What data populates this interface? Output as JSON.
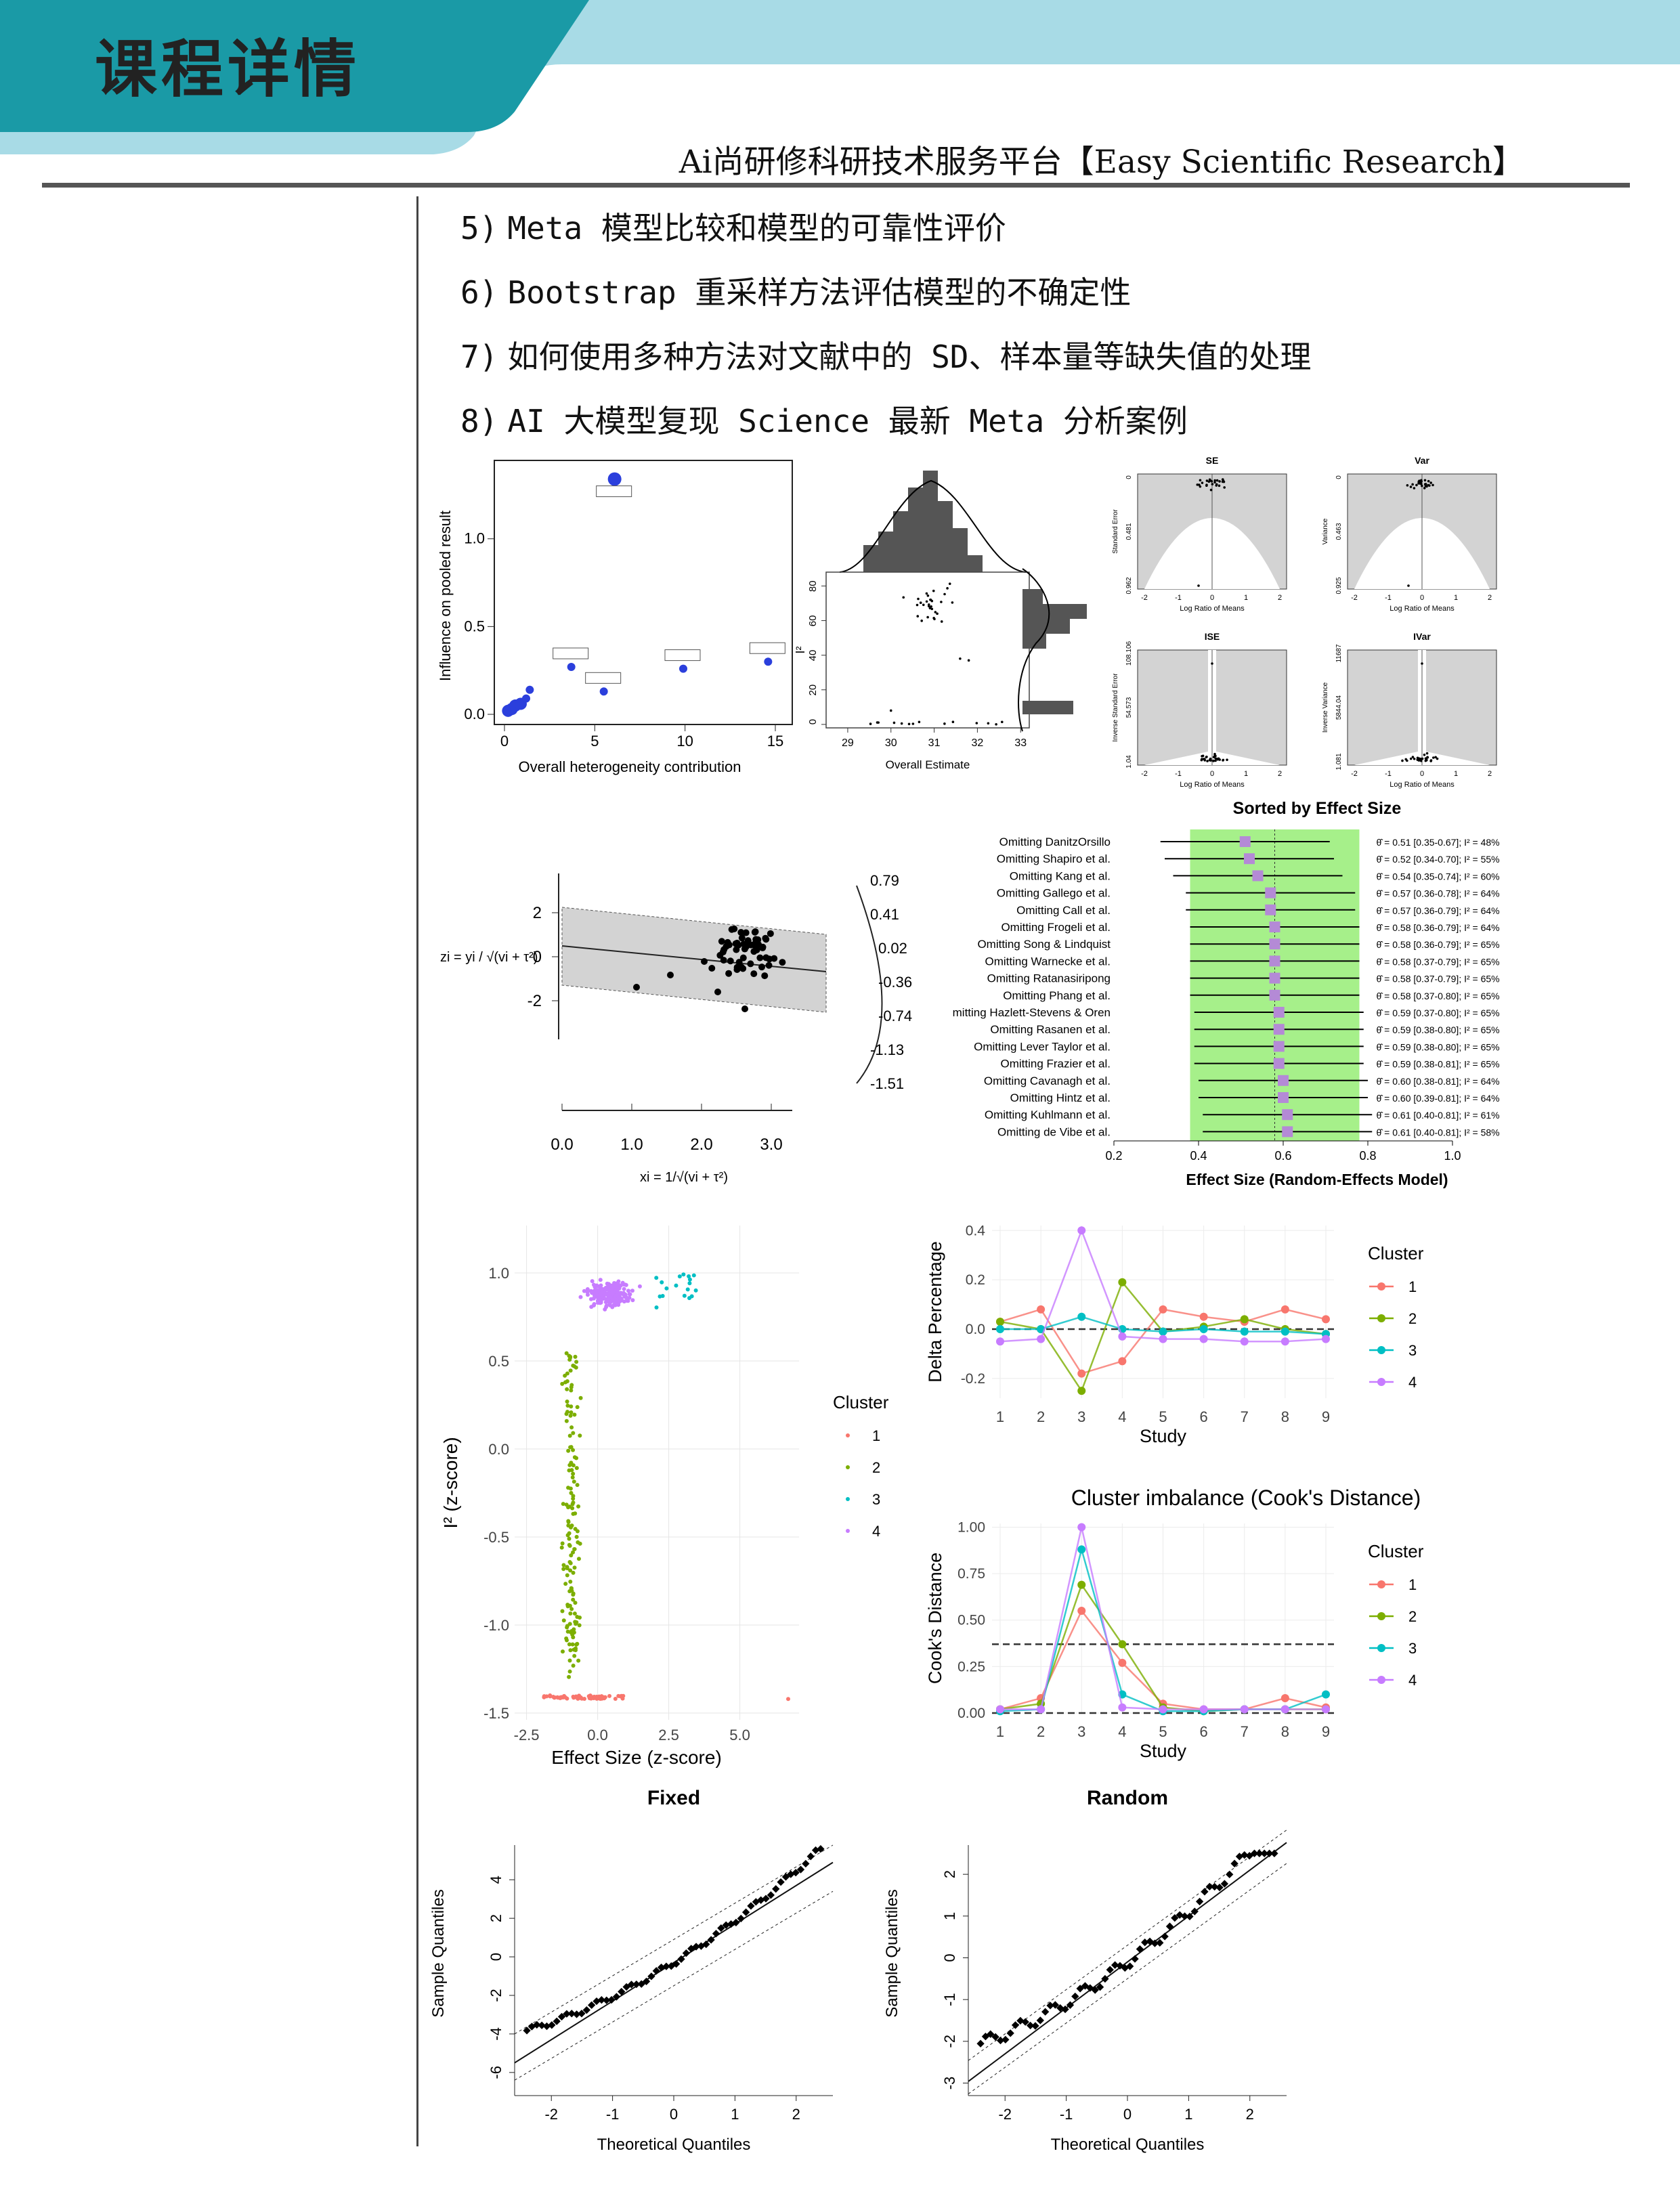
{
  "header": {
    "title": "课程详情",
    "platform": "Ai尚研修科研技术服务平台【Easy Scientific Research】",
    "colors": {
      "teal": "#1a9aa6",
      "light_blue": "#a8dbe6"
    }
  },
  "items": [
    {
      "num": "5)",
      "text": "Meta 模型比较和模型的可靠性评价"
    },
    {
      "num": "6)",
      "text": "Bootstrap 重采样方法评估模型的不确定性"
    },
    {
      "num": "7)",
      "text": "如何使用多种方法对文献中的 SD、样本量等缺失值的处理"
    },
    {
      "num": "8)",
      "text": "AI 大模型复现 Science 最新 Meta 分析案例"
    }
  ],
  "figures": {
    "influence": {
      "chart_data": {
        "type": "scatter",
        "xlabel": "Overall heterogeneity contribution",
        "ylabel": "Influence on pooled result",
        "x_ticks": [
          "0",
          "5",
          "10",
          "15"
        ],
        "y_ticks": [
          "0.0",
          "0.5",
          "1.0"
        ],
        "xlim": [
          0,
          15
        ],
        "ylim": [
          0,
          1.35
        ],
        "points": [
          {
            "x": 0.2,
            "y": 0.02
          },
          {
            "x": 0.4,
            "y": 0.03
          },
          {
            "x": 0.6,
            "y": 0.05
          },
          {
            "x": 0.9,
            "y": 0.06
          },
          {
            "x": 1.2,
            "y": 0.09
          },
          {
            "x": 1.4,
            "y": 0.14
          },
          {
            "x": 3.7,
            "y": 0.27
          },
          {
            "x": 5.5,
            "y": 0.13
          },
          {
            "x": 9.9,
            "y": 0.26
          },
          {
            "x": 14.6,
            "y": 0.3
          },
          {
            "x": 6.1,
            "y": 1.34
          }
        ]
      }
    },
    "marginal": {
      "chart_data": {
        "type": "scatter",
        "xlabel": "Overall Estimate",
        "ylabel": "I²",
        "x_ticks": [
          "29",
          "30",
          "31",
          "32",
          "33"
        ],
        "y_ticks": [
          "0",
          "20",
          "40",
          "60",
          "80"
        ],
        "xlim": [
          28.5,
          33.2
        ],
        "ylim": [
          -2,
          88
        ]
      }
    },
    "funnels": {
      "panels": [
        {
          "title": "SE",
          "ylabel": "Standard Error",
          "xlabel": "Log Ratio of Means",
          "y_ticks": [
            "0",
            "0.481",
            "0.962"
          ]
        },
        {
          "title": "Var",
          "ylabel": "Variance",
          "xlabel": "Log Ratio of Means",
          "y_ticks": [
            "0",
            "0.463",
            "0.925"
          ]
        },
        {
          "title": "ISE",
          "ylabel": "Inverse Standard Error",
          "xlabel": "Log Ratio of Means",
          "y_ticks": [
            "108.106",
            "54.573",
            "1.04"
          ]
        },
        {
          "title": "IVar",
          "ylabel": "Inverse Variance",
          "xlabel": "Log Ratio of Means",
          "y_ticks": [
            "11687",
            "5844.04",
            "1.081"
          ]
        }
      ],
      "x_ticks": [
        "-2",
        "-1",
        "0",
        "1",
        "2"
      ]
    },
    "galbraith": {
      "chart_data": {
        "type": "scatter",
        "ylabel": "zi = yi / √(vi + τ²)",
        "xlabel": "xi = 1/√(vi + τ²)",
        "x_ticks": [
          "0.0",
          "1.0",
          "2.0",
          "3.0"
        ],
        "y_ticks": [
          "2",
          "0",
          "-2"
        ],
        "arc_ticks": [
          "0.79",
          "0.41",
          "0.02",
          "-0.36",
          "-0.74",
          "-1.13",
          "-1.51"
        ]
      }
    },
    "forest": {
      "chart_data": {
        "type": "forest",
        "title": "Sorted by Effect Size",
        "xlabel": "Effect Size (Random-Effects Model)",
        "x_ticks": [
          "0.2",
          "0.4",
          "0.6",
          "0.8",
          "1.0"
        ],
        "xlim": [
          0.2,
          1.0
        ],
        "rows": [
          {
            "label": "Omitting DanitzOrsillo",
            "est": 0.51,
            "ci": "θ̂ = 0.51 [0.35-0.67]; I² = 48%"
          },
          {
            "label": "Omitting Shapiro et al.",
            "est": 0.52,
            "ci": "θ̂ = 0.52 [0.34-0.70]; I² = 55%"
          },
          {
            "label": "Omitting Kang et al.",
            "est": 0.54,
            "ci": "θ̂ = 0.54 [0.35-0.74]; I² = 60%"
          },
          {
            "label": "Omitting Gallego et al.",
            "est": 0.57,
            "ci": "θ̂ = 0.57 [0.36-0.78]; I² = 64%"
          },
          {
            "label": "Omitting Call et al.",
            "est": 0.57,
            "ci": "θ̂ = 0.57 [0.36-0.79]; I² = 64%"
          },
          {
            "label": "Omitting Frogeli et al.",
            "est": 0.58,
            "ci": "θ̂ = 0.58 [0.36-0.79]; I² = 64%"
          },
          {
            "label": "Omitting Song & Lindquist",
            "est": 0.58,
            "ci": "θ̂ = 0.58 [0.36-0.79]; I² = 65%"
          },
          {
            "label": "Omitting Warnecke et al.",
            "est": 0.58,
            "ci": "θ̂ = 0.58 [0.37-0.79]; I² = 65%"
          },
          {
            "label": "Omitting Ratanasiripong",
            "est": 0.58,
            "ci": "θ̂ = 0.58 [0.37-0.79]; I² = 65%"
          },
          {
            "label": "Omitting Phang et al.",
            "est": 0.58,
            "ci": "θ̂ = 0.58 [0.37-0.80]; I² = 65%"
          },
          {
            "label": "mitting Hazlett-Stevens & Oren",
            "est": 0.59,
            "ci": "θ̂ = 0.59 [0.37-0.80]; I² = 65%"
          },
          {
            "label": "Omitting Rasanen et al.",
            "est": 0.59,
            "ci": "θ̂ = 0.59 [0.38-0.80]; I² = 65%"
          },
          {
            "label": "Omitting Lever Taylor et al.",
            "est": 0.59,
            "ci": "θ̂ = 0.59 [0.38-0.80]; I² = 65%"
          },
          {
            "label": "Omitting Frazier et al.",
            "est": 0.59,
            "ci": "θ̂ = 0.59 [0.38-0.81]; I² = 65%"
          },
          {
            "label": "Omitting Cavanagh et al.",
            "est": 0.6,
            "ci": "θ̂ = 0.60 [0.38-0.81]; I² = 64%"
          },
          {
            "label": "Omitting Hintz et al.",
            "est": 0.6,
            "ci": "θ̂ = 0.60 [0.39-0.81]; I² = 64%"
          },
          {
            "label": "Omitting Kuhlmann et al.",
            "est": 0.61,
            "ci": "θ̂ = 0.61 [0.40-0.81]; I² = 61%"
          },
          {
            "label": "Omitting de Vibe et al.",
            "est": 0.61,
            "ci": "θ̂ = 0.61 [0.40-0.81]; I² = 58%"
          }
        ]
      }
    },
    "cluster_scatter": {
      "chart_data": {
        "type": "scatter",
        "xlabel": "Effect Size (z-score)",
        "ylabel": "I² (z-score)",
        "x_ticks": [
          "-2.5",
          "0.0",
          "2.5",
          "5.0"
        ],
        "y_ticks": [
          "1.0",
          "0.5",
          "0.0",
          "-0.5",
          "-1.0",
          "-1.5"
        ],
        "legend_title": "Cluster",
        "legend": [
          "1",
          "2",
          "3",
          "4"
        ],
        "colors": [
          "#f8766d",
          "#7cae00",
          "#00bfc4",
          "#c77cff"
        ]
      }
    },
    "delta": {
      "chart_data": {
        "type": "line",
        "xlabel": "Study",
        "ylabel": "Delta Percentage",
        "categories": [
          "1",
          "2",
          "3",
          "4",
          "5",
          "6",
          "7",
          "8",
          "9"
        ],
        "y_ticks": [
          "0.4",
          "0.2",
          "0.0",
          "-0.2"
        ],
        "ylim": [
          -0.28,
          0.42
        ],
        "legend_title": "Cluster",
        "series": [
          {
            "name": "1",
            "values": [
              0.03,
              0.08,
              -0.18,
              -0.13,
              0.08,
              0.05,
              0.03,
              0.08,
              0.04
            ]
          },
          {
            "name": "2",
            "values": [
              0.03,
              0.0,
              -0.25,
              0.19,
              -0.01,
              0.01,
              0.04,
              0.0,
              -0.02
            ]
          },
          {
            "name": "3",
            "values": [
              0.0,
              0.0,
              0.05,
              0.0,
              -0.01,
              0.0,
              -0.01,
              -0.01,
              -0.02
            ]
          },
          {
            "name": "4",
            "values": [
              -0.05,
              -0.04,
              0.4,
              -0.03,
              -0.04,
              -0.04,
              -0.05,
              -0.05,
              -0.04
            ]
          }
        ]
      }
    },
    "cooks": {
      "chart_data": {
        "type": "line",
        "title": "Cluster imbalance (Cook's Distance)",
        "xlabel": "Study",
        "ylabel": "Cook's Distance",
        "categories": [
          "1",
          "2",
          "3",
          "4",
          "5",
          "6",
          "7",
          "8",
          "9"
        ],
        "y_ticks": [
          "1.00",
          "0.75",
          "0.50",
          "0.25",
          "0.00"
        ],
        "ylim": [
          0,
          1.02
        ],
        "legend_title": "Cluster",
        "series": [
          {
            "name": "1",
            "values": [
              0.02,
              0.08,
              0.55,
              0.27,
              0.05,
              0.02,
              0.02,
              0.08,
              0.03
            ]
          },
          {
            "name": "2",
            "values": [
              0.02,
              0.05,
              0.69,
              0.37,
              0.03,
              0.01,
              0.02,
              0.02,
              0.02
            ]
          },
          {
            "name": "3",
            "values": [
              0.01,
              0.02,
              0.88,
              0.1,
              0.01,
              0.01,
              0.02,
              0.02,
              0.1
            ]
          },
          {
            "name": "4",
            "values": [
              0.02,
              0.02,
              1.0,
              0.03,
              0.02,
              0.02,
              0.02,
              0.02,
              0.02
            ]
          }
        ]
      }
    },
    "qq_fixed": {
      "chart_data": {
        "type": "scatter",
        "title": "Fixed",
        "xlabel": "Theoretical Quantiles",
        "ylabel": "Sample Quantiles",
        "x_ticks": [
          "-2",
          "-1",
          "0",
          "1",
          "2"
        ],
        "y_ticks": [
          "4",
          "2",
          "0",
          "-2",
          "-4",
          "-6"
        ],
        "xlim": [
          -2.6,
          2.6
        ],
        "ylim": [
          -7.2,
          5.8
        ]
      }
    },
    "qq_random": {
      "chart_data": {
        "type": "scatter",
        "title": "Random",
        "xlabel": "Theoretical Quantiles",
        "ylabel": "Sample Quantiles",
        "x_ticks": [
          "-2",
          "-1",
          "0",
          "1",
          "2"
        ],
        "y_ticks": [
          "2",
          "1",
          "0",
          "-1",
          "-2",
          "-3"
        ],
        "xlim": [
          -2.6,
          2.6
        ],
        "ylim": [
          -3.3,
          2.7
        ]
      }
    }
  }
}
